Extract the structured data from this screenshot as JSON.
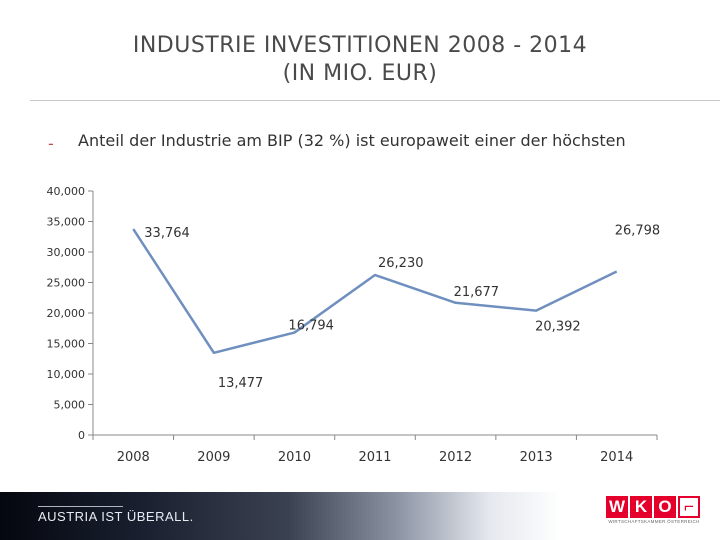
{
  "slide": {
    "title_line1": "INDUSTRIE INVESTITIONEN 2008 - 2014",
    "title_line2": "(IN MIO. EUR)",
    "bullet": "Anteil der Industrie am BIP (32 %) ist europaweit einer der höchsten"
  },
  "footer": {
    "slogan": "AUSTRIA IST ÜBERALL.",
    "logo_text": "WKO",
    "logo_subtitle": "WIRTSCHAFTSKAMMER ÖSTERREICH"
  },
  "colors": {
    "line": "#6f8fbf",
    "accent": "#e4002b"
  },
  "chart_data": {
    "type": "line",
    "title": "",
    "xlabel": "",
    "ylabel": "",
    "categories": [
      "2008",
      "2009",
      "2010",
      "2011",
      "2012",
      "2013",
      "2014"
    ],
    "series": [
      {
        "name": "Industrie Investitionen (Mio. EUR)",
        "values": [
          33764,
          13477,
          16794,
          26230,
          21677,
          20392,
          26798
        ],
        "labels": [
          "33,764",
          "13,477",
          "16,794",
          "26,230",
          "21,677",
          "20,392",
          "26,798"
        ]
      }
    ],
    "ylim": [
      0,
      40000
    ],
    "yticks": [
      0,
      5000,
      10000,
      15000,
      20000,
      25000,
      30000,
      35000,
      40000
    ],
    "ytick_labels": [
      "0",
      "5,000",
      "10,000",
      "15,000",
      "20,000",
      "25,000",
      "30,000",
      "35,000",
      "40,000"
    ],
    "grid": false
  }
}
